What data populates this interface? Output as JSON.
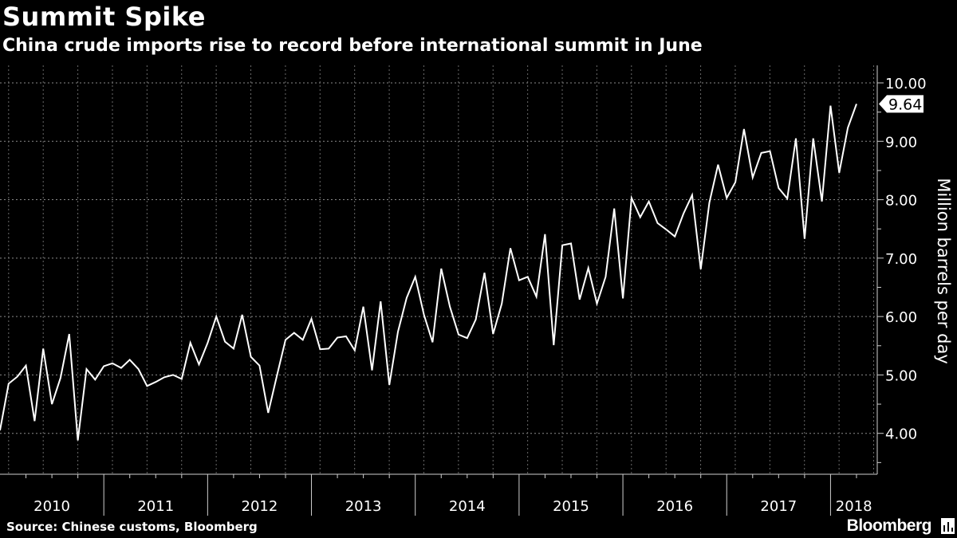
{
  "chart_data": {
    "type": "line",
    "title": "Summit Spike",
    "subtitle": "China crude imports rise to record before international summit in June",
    "ylabel": "Million barrels per day",
    "xlabel": "",
    "ylim": [
      3.3,
      10.3
    ],
    "yticks": [
      4,
      5,
      6,
      7,
      8,
      9,
      10
    ],
    "ytick_labels": [
      "4.00",
      "5.00",
      "6.00",
      "7.00",
      "8.00",
      "9.00",
      "10.00"
    ],
    "xlim": [
      2010.0,
      2018.45
    ],
    "year_labels": [
      "2010",
      "2011",
      "2012",
      "2013",
      "2014",
      "2015",
      "2016",
      "2017",
      "2018"
    ],
    "grid": true,
    "series": [
      {
        "name": "China crude imports",
        "color": "#ffffff",
        "start": "2010-01",
        "values": [
          4.05,
          4.85,
          4.97,
          5.16,
          4.21,
          5.45,
          4.5,
          4.95,
          5.7,
          3.88,
          5.1,
          4.92,
          5.15,
          5.2,
          5.12,
          5.26,
          5.1,
          4.81,
          4.88,
          4.96,
          5.0,
          4.93,
          5.55,
          5.18,
          5.55,
          6.0,
          5.57,
          5.45,
          6.03,
          5.31,
          5.16,
          4.35,
          4.98,
          5.6,
          5.72,
          5.6,
          5.96,
          5.44,
          5.45,
          5.64,
          5.66,
          5.42,
          6.17,
          5.08,
          6.26,
          4.83,
          5.74,
          6.32,
          6.68,
          6.03,
          5.56,
          6.82,
          6.17,
          5.69,
          5.63,
          5.95,
          6.75,
          5.7,
          6.22,
          7.17,
          6.62,
          6.68,
          6.34,
          7.41,
          5.51,
          7.22,
          7.25,
          6.29,
          6.83,
          6.22,
          6.68,
          7.85,
          6.31,
          8.03,
          7.7,
          7.97,
          7.6,
          7.49,
          7.37,
          7.76,
          8.08,
          6.81,
          7.95,
          8.6,
          8.03,
          8.3,
          9.21,
          8.38,
          8.8,
          8.83,
          8.2,
          8.02,
          9.05,
          7.33,
          9.05,
          7.97,
          9.61,
          8.46,
          9.23,
          9.64
        ]
      }
    ],
    "callout": {
      "label": "9.64",
      "value": 9.64
    },
    "source": "Source: Chinese customs, Bloomberg",
    "brand": "Bloomberg"
  }
}
